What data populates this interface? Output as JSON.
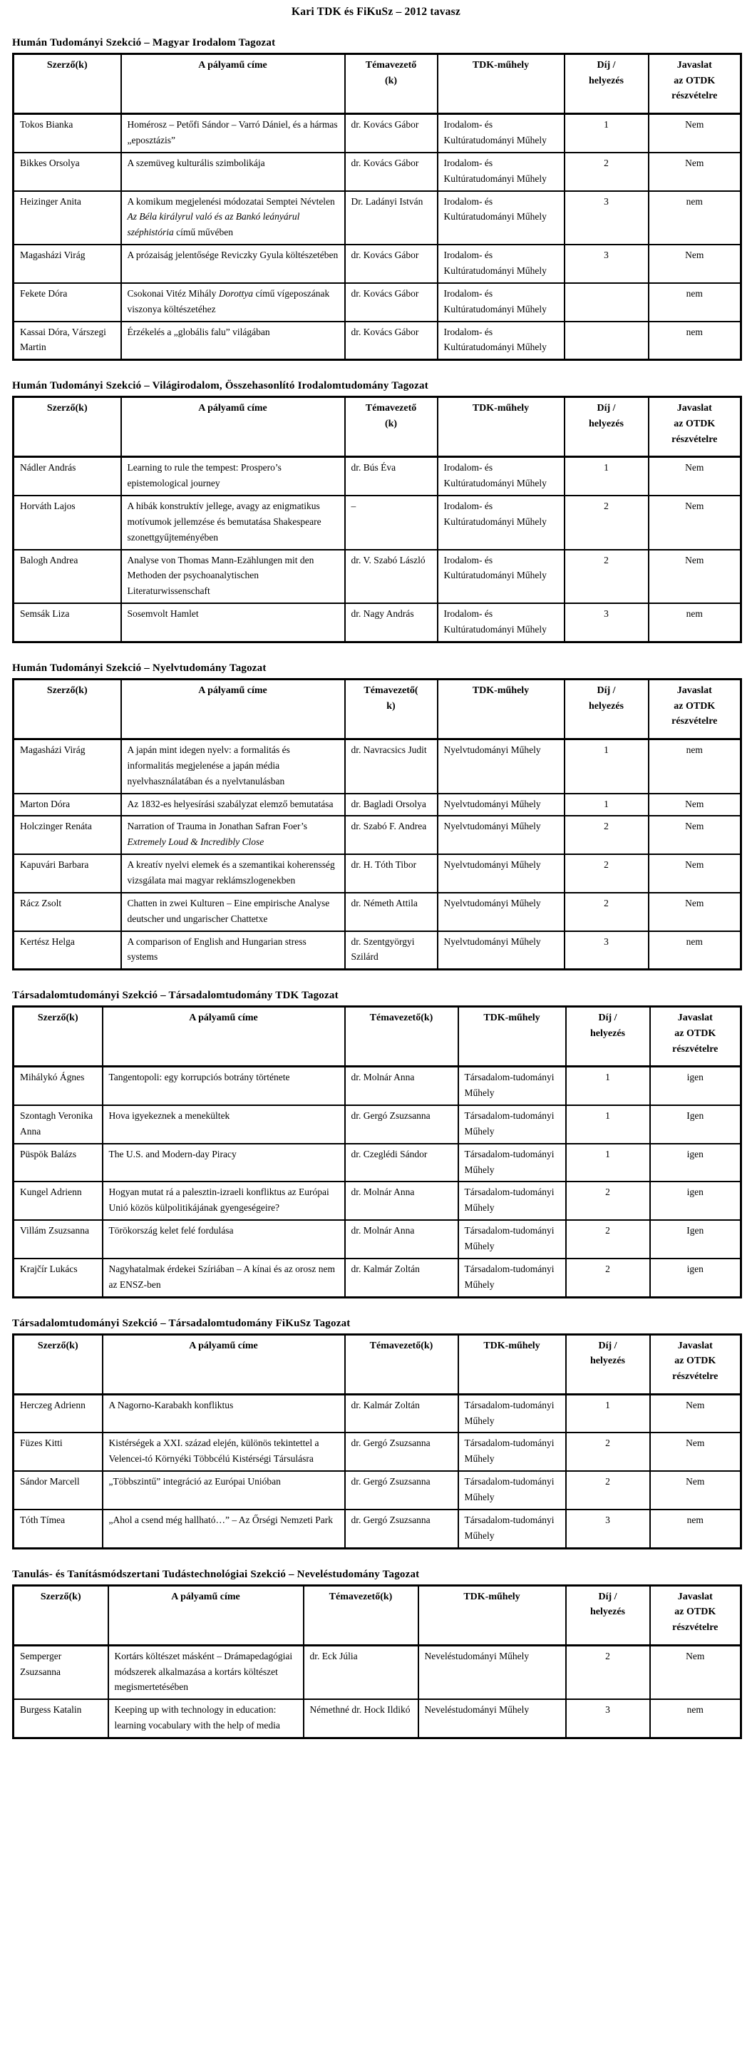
{
  "page_title": "Kari TDK és FiKuSz – 2012 tavasz",
  "sections": [
    {
      "heading": "Humán Tudományi Szekció – Magyar Irodalom Tagozat",
      "columns": [
        "Szerző(k)",
        "A pályamű címe",
        "Témavezető\n(k)",
        "TDK-műhely",
        "Díj /\nhelyezés",
        "Javaslat\naz OTDK\nrészvételre"
      ],
      "rows": [
        {
          "authors": "Tokos Bianka",
          "title": [
            {
              "text": "Homérosz – Petőfi Sándor – Varró Dániel, és a hármas „eposztázis”",
              "italic": false
            }
          ],
          "advisor": "dr. Kovács Gábor",
          "workshop": "Irodalom- és Kultúratudományi Műhely",
          "prize": "1",
          "otdk": "Nem"
        },
        {
          "authors": "Bikkes Orsolya",
          "title": [
            {
              "text": "A szemüveg kulturális szimbolikája",
              "italic": false
            }
          ],
          "advisor": "dr. Kovács Gábor",
          "workshop": "Irodalom- és Kultúratudományi Műhely",
          "prize": "2",
          "otdk": "Nem"
        },
        {
          "authors": "Heizinger Anita",
          "title": [
            {
              "text": "A komikum megjelenési módozatai Semptei Névtelen ",
              "italic": false
            },
            {
              "text": "Az Béla királyrul való és az Bankó leányárul széphistória",
              "italic": true
            },
            {
              "text": " című művében",
              "italic": false
            }
          ],
          "advisor": "Dr. Ladányi István",
          "workshop": "Irodalom- és Kultúratudományi Műhely",
          "prize": "3",
          "otdk": "nem"
        },
        {
          "authors": "Magasházi Virág",
          "title": [
            {
              "text": "A prózaiság jelentősége Reviczky Gyula költészetében",
              "italic": false
            }
          ],
          "advisor": "dr. Kovács Gábor",
          "workshop": "Irodalom- és Kultúratudományi Műhely",
          "prize": "3",
          "otdk": "Nem"
        },
        {
          "authors": "Fekete Dóra",
          "title": [
            {
              "text": "Csokonai Vitéz Mihály ",
              "italic": false
            },
            {
              "text": "Dorottya",
              "italic": true
            },
            {
              "text": " című vígeposzának viszonya költészetéhez",
              "italic": false
            }
          ],
          "advisor": "dr. Kovács Gábor",
          "workshop": "Irodalom- és Kultúratudományi Műhely",
          "prize": "",
          "otdk": "nem"
        },
        {
          "authors": "Kassai Dóra, Várszegi Martin",
          "title": [
            {
              "text": "Érzékelés a „globális falu” világában",
              "italic": false
            }
          ],
          "advisor": "dr. Kovács Gábor",
          "workshop": "Irodalom- és Kultúratudományi Műhely",
          "prize": "",
          "otdk": "nem"
        }
      ]
    },
    {
      "heading": "Humán Tudományi Szekció – Világirodalom, Összehasonlító Irodalomtudomány Tagozat",
      "columns": [
        "Szerző(k)",
        "A pályamű címe",
        "Témavezető\n(k)",
        "TDK-műhely",
        "Díj /\nhelyezés",
        "Javaslat\naz OTDK\nrészvételre"
      ],
      "rows": [
        {
          "authors": "Nádler András",
          "title": [
            {
              "text": "Learning to rule the tempest: Prospero’s epistemological journey",
              "italic": false
            }
          ],
          "advisor": "dr. Bús Éva",
          "workshop": "Irodalom- és Kultúratudományi Műhely",
          "prize": "1",
          "otdk": "Nem"
        },
        {
          "authors": "Horváth Lajos",
          "title": [
            {
              "text": "A hibák konstruktív jellege, avagy az enigmatikus motívumok jellemzése és bemutatása Shakespeare szonettgyűjteményében",
              "italic": false
            }
          ],
          "advisor": "–",
          "workshop": "Irodalom- és Kultúratudományi Műhely",
          "prize": "2",
          "otdk": "Nem"
        },
        {
          "authors": "Balogh Andrea",
          "title": [
            {
              "text": "Analyse von Thomas Mann-Ezählungen mit den Methoden der psychoanalytischen Literaturwissenschaft",
              "italic": false
            }
          ],
          "advisor": "dr. V. Szabó László",
          "workshop": "Irodalom- és Kultúratudományi Műhely",
          "prize": "2",
          "otdk": "Nem"
        },
        {
          "authors": "Semsák Liza",
          "title": [
            {
              "text": "Sosemvolt Hamlet",
              "italic": false
            }
          ],
          "advisor": "dr. Nagy András",
          "workshop": "Irodalom- és Kultúratudományi Műhely",
          "prize": "3",
          "otdk": "nem"
        }
      ]
    },
    {
      "heading": "Humán Tudományi Szekció – Nyelvtudomány Tagozat",
      "columns": [
        "Szerző(k)",
        "A pályamű címe",
        "Témavezető(\nk)",
        "TDK-műhely",
        "Díj /\nhelyezés",
        "Javaslat\naz OTDK\nrészvételre"
      ],
      "rows": [
        {
          "authors": "Magasházi Virág",
          "title": [
            {
              "text": "A japán mint idegen nyelv: a formalitás és informalitás megjelenése a japán média nyelvhasználatában és a nyelvtanulásban",
              "italic": false
            }
          ],
          "advisor": "dr. Navracsics Judit",
          "workshop": "Nyelvtudományi Műhely",
          "prize": "1",
          "otdk": "nem"
        },
        {
          "authors": "Marton Dóra",
          "title": [
            {
              "text": "Az 1832-es helyesírási szabályzat elemző bemutatása",
              "italic": false
            }
          ],
          "advisor": "dr. Bagladi Orsolya",
          "workshop": "Nyelvtudományi Műhely",
          "prize": "1",
          "otdk": "Nem"
        },
        {
          "authors": "Holczinger Renáta",
          "title": [
            {
              "text": "Narration of Trauma in Jonathan Safran Foer’s ",
              "italic": false
            },
            {
              "text": "Extremely Loud & Incredibly Close",
              "italic": true
            }
          ],
          "advisor": "dr. Szabó F. Andrea",
          "workshop": "Nyelvtudományi Műhely",
          "prize": "2",
          "otdk": "Nem"
        },
        {
          "authors": "Kapuvári Barbara",
          "title": [
            {
              "text": "A kreatív nyelvi elemek és a szemantikai koherensség vizsgálata mai magyar reklámszlogenekben",
              "italic": false
            }
          ],
          "advisor": "dr. H. Tóth Tibor",
          "workshop": "Nyelvtudományi Műhely",
          "prize": "2",
          "otdk": "Nem"
        },
        {
          "authors": "Rácz Zsolt",
          "title": [
            {
              "text": "Chatten in zwei Kulturen – Eine empirische Analyse deutscher und ungarischer Chattetxe",
              "italic": false
            }
          ],
          "advisor": "dr. Németh Attila",
          "workshop": "Nyelvtudományi Műhely",
          "prize": "2",
          "otdk": "Nem"
        },
        {
          "authors": "Kertész Helga",
          "title": [
            {
              "text": "A comparison of English and Hungarian stress systems",
              "italic": false
            }
          ],
          "advisor": "dr. Szentgyörgyi Szilárd",
          "workshop": "Nyelvtudományi Műhely",
          "prize": "3",
          "otdk": "nem"
        }
      ]
    },
    {
      "heading": "Társadalomtudományi Szekció – Társadalomtudomány TDK Tagozat",
      "columns": [
        "Szerző(k)",
        "A pályamű címe",
        "Témavezető(k)",
        "TDK-műhely",
        "Díj /\nhelyezés",
        "Javaslat\naz OTDK\nrészvételre"
      ],
      "rows": [
        {
          "authors": "Mihálykó Ágnes",
          "title": [
            {
              "text": "Tangentopoli: egy korrupciós botrány története",
              "italic": false
            }
          ],
          "advisor": "dr. Molnár Anna",
          "workshop": "Társadalom-tudományi Műhely",
          "prize": "1",
          "otdk": "igen"
        },
        {
          "authors": "Szontagh Veronika Anna",
          "title": [
            {
              "text": "Hova igyekeznek a menekültek",
              "italic": false
            }
          ],
          "advisor": "dr. Gergó Zsuzsanna",
          "workshop": "Társadalom-tudományi Műhely",
          "prize": "1",
          "otdk": "Igen"
        },
        {
          "authors": "Püspök Balázs",
          "title": [
            {
              "text": "The U.S. and Modern-day Piracy",
              "italic": false
            }
          ],
          "advisor": "dr. Czeglédi Sándor",
          "workshop": "Társadalom-tudományi Műhely",
          "prize": "1",
          "otdk": "igen"
        },
        {
          "authors": "Kungel Adrienn",
          "title": [
            {
              "text": "Hogyan mutat rá a palesztin-izraeli konfliktus az Európai Unió közös külpolitikájának gyengeségeire?",
              "italic": false
            }
          ],
          "advisor": "dr. Molnár Anna",
          "workshop": "Társadalom-tudományi Műhely",
          "prize": "2",
          "otdk": "igen"
        },
        {
          "authors": "Villám Zsuzsanna",
          "title": [
            {
              "text": "Törökország kelet felé fordulása",
              "italic": false
            }
          ],
          "advisor": "dr. Molnár Anna",
          "workshop": "Társadalom-tudományi Műhely",
          "prize": "2",
          "otdk": "Igen"
        },
        {
          "authors": "Krajčír Lukács",
          "title": [
            {
              "text": "Nagyhatalmak érdekei Szíriában – A kínai és az orosz nem az ENSZ-ben",
              "italic": false
            }
          ],
          "advisor": "dr. Kalmár Zoltán",
          "workshop": "Társadalom-tudományi Műhely",
          "prize": "2",
          "otdk": "igen"
        }
      ]
    },
    {
      "heading": "Társadalomtudományi Szekció – Társadalomtudomány FiKuSz Tagozat",
      "columns": [
        "Szerző(k)",
        "A pályamű címe",
        "Témavezető(k)",
        "TDK-műhely",
        "Díj /\nhelyezés",
        "Javaslat\naz OTDK\nrészvételre"
      ],
      "rows": [
        {
          "authors": "Herczeg Adrienn",
          "title": [
            {
              "text": "A Nagorno-Karabakh konfliktus",
              "italic": false
            }
          ],
          "advisor": "dr. Kalmár Zoltán",
          "workshop": "Társadalom-tudományi Műhely",
          "prize": "1",
          "otdk": "Nem"
        },
        {
          "authors": "Füzes Kitti",
          "title": [
            {
              "text": "Kistérségek a XXI. század elején, különös tekintettel a Velencei-tó Környéki Többcélú Kistérségi Társulásra",
              "italic": false
            }
          ],
          "advisor": "dr. Gergó Zsuzsanna",
          "workshop": "Társadalom-tudományi Műhely",
          "prize": "2",
          "otdk": "Nem"
        },
        {
          "authors": "Sándor Marcell",
          "title": [
            {
              "text": "„Többszintű” integráció az Európai Unióban",
              "italic": false
            }
          ],
          "advisor": "dr. Gergó Zsuzsanna",
          "workshop": "Társadalom-tudományi Műhely",
          "prize": "2",
          "otdk": "Nem"
        },
        {
          "authors": "Tóth Tímea",
          "title": [
            {
              "text": "„Ahol a csend még hallható…” – Az Őrségi Nemzeti Park",
              "italic": false
            }
          ],
          "advisor": "dr. Gergó Zsuzsanna",
          "workshop": "Társadalom-tudományi Műhely",
          "prize": "3",
          "otdk": "nem"
        }
      ]
    },
    {
      "heading": "Tanulás- és Tanításmódszertani Tudástechnológiai Szekció – Neveléstudomány Tagozat",
      "columns": [
        "Szerző(k)",
        "A pályamű címe",
        "Témavezető(k)",
        "TDK-műhely",
        "Díj /\nhelyezés",
        "Javaslat\naz OTDK\nrészvételre"
      ],
      "rows": [
        {
          "authors": "Semperger Zsuzsanna",
          "title": [
            {
              "text": "Kortárs költészet másként – Drámapedagógiai módszerek alkalmazása a kortárs költészet megismertetésében",
              "italic": false
            }
          ],
          "advisor": "dr. Eck Júlia",
          "workshop": "Neveléstudományi Műhely",
          "prize": "2",
          "otdk": "Nem"
        },
        {
          "authors": "Burgess Katalin",
          "title": [
            {
              "text": "Keeping up with technology in education: learning vocabulary with the help of media",
              "italic": false
            }
          ],
          "advisor": "Némethné dr. Hock Ildikó",
          "workshop": "Neveléstudományi Műhely",
          "prize": "3",
          "otdk": "nem"
        }
      ]
    }
  ]
}
